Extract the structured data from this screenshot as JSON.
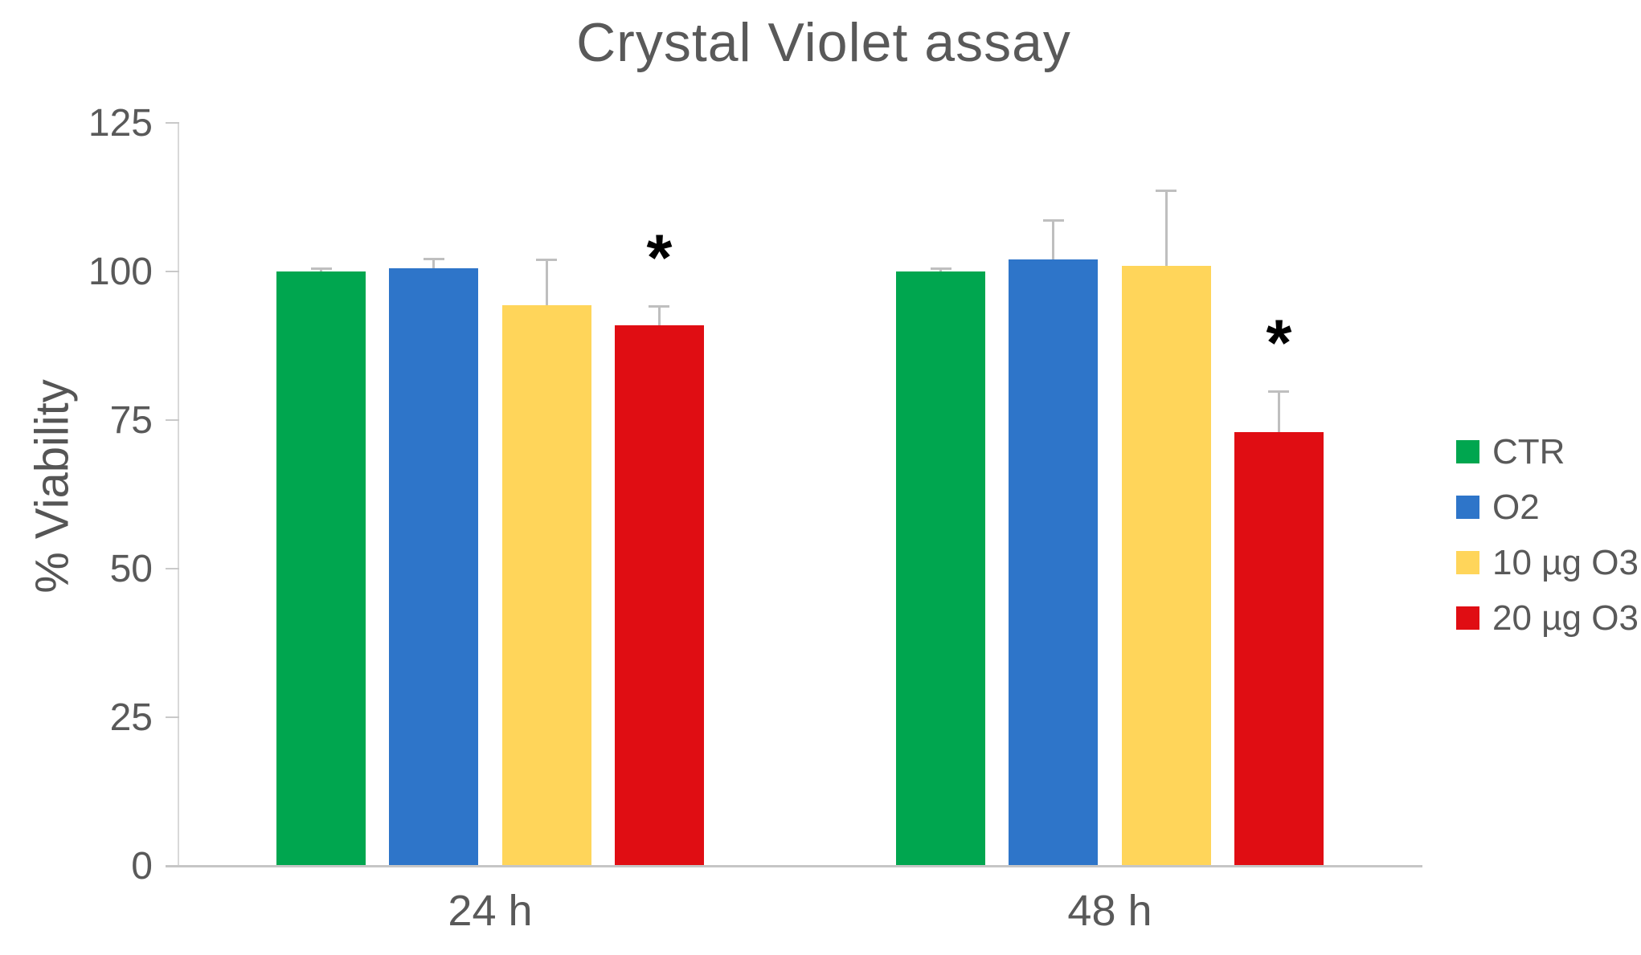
{
  "page_title": "Crystal Violet assay",
  "chart_data": {
    "type": "bar",
    "title": "Crystal Violet assay",
    "xlabel": "",
    "ylabel": "% Viability",
    "ylim": [
      0,
      125
    ],
    "yticks": [
      0,
      25,
      50,
      75,
      100,
      125
    ],
    "grid": false,
    "legend_position": "right",
    "categories": [
      "24 h",
      "48 h"
    ],
    "series": [
      {
        "name": "CTR",
        "color": "#00A64F",
        "values": [
          100,
          100
        ],
        "errors": [
          0.5,
          0.5
        ],
        "significant": [
          false,
          false
        ]
      },
      {
        "name": "O2",
        "color": "#2E75C9",
        "values": [
          100.5,
          102
        ],
        "errors": [
          1.7,
          6.6
        ],
        "significant": [
          false,
          false
        ]
      },
      {
        "name": "10 µg O3",
        "color": "#FFD55A",
        "values": [
          94.3,
          101
        ],
        "errors": [
          7.7,
          12.6
        ],
        "significant": [
          false,
          false
        ]
      },
      {
        "name": "20 µg O3",
        "color": "#E00D13",
        "values": [
          91,
          73
        ],
        "errors": [
          3.2,
          6.8
        ],
        "significant": [
          true,
          true
        ]
      }
    ],
    "significance_marker": "*",
    "error_bar_color": "#BFBFBF",
    "axis_color": "#C9C9C9",
    "text_color": "#595959"
  }
}
